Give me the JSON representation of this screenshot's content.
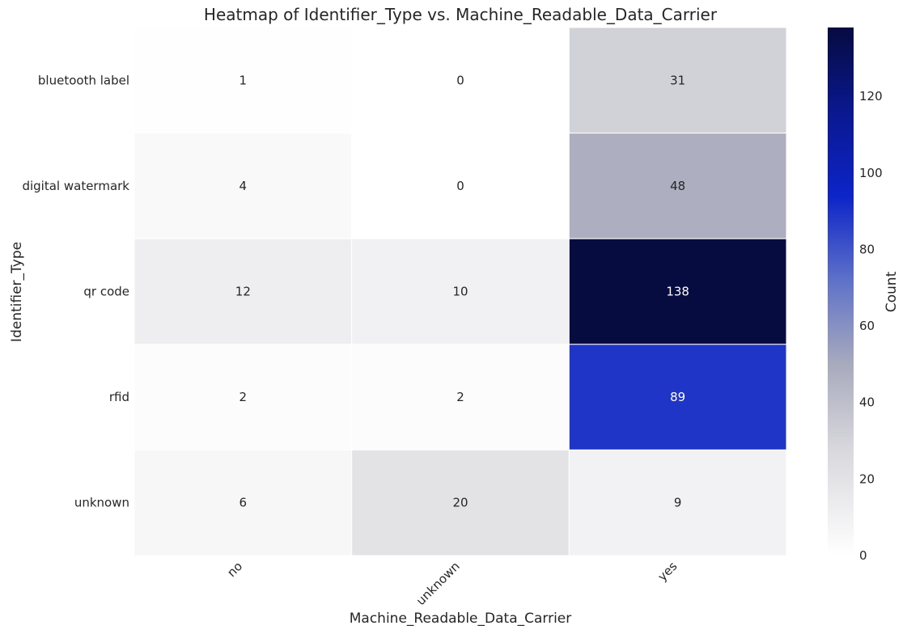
{
  "chart_data": {
    "type": "heatmap",
    "title": "Heatmap of Identifier_Type vs. Machine_Readable_Data_Carrier",
    "xlabel": "Machine_Readable_Data_Carrier",
    "ylabel": "Identifier_Type",
    "x_categories": [
      "no",
      "unknown",
      "yes"
    ],
    "y_categories": [
      "bluetooth label",
      "digital watermark",
      "qr code",
      "rfid",
      "unknown"
    ],
    "values": [
      [
        1,
        0,
        31
      ],
      [
        4,
        0,
        48
      ],
      [
        12,
        10,
        138
      ],
      [
        2,
        2,
        89
      ],
      [
        6,
        20,
        9
      ]
    ],
    "colorbar": {
      "label": "Count",
      "min": 0,
      "max": 138,
      "ticks": [
        0,
        20,
        40,
        60,
        80,
        100,
        120
      ]
    },
    "colors": {
      "scale_low": "#ffffff",
      "scale_mid_gray": "#a9abbd",
      "scale_mid_blue": "#0d24c8",
      "scale_high": "#060b40",
      "text_dark": "#262626",
      "text_light": "#ffffff"
    }
  }
}
